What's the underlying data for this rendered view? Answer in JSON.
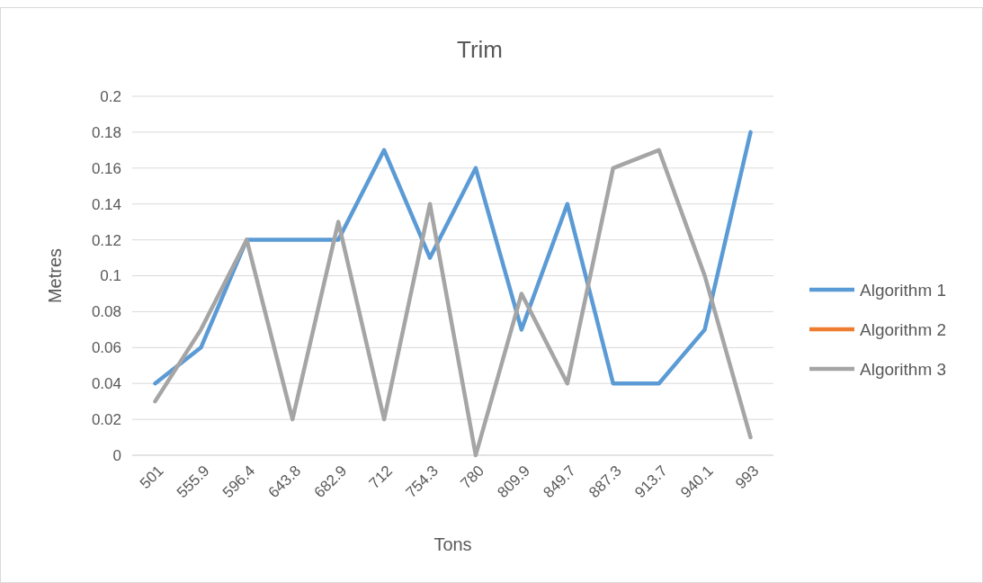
{
  "chart_data": {
    "type": "line",
    "title": "Trim",
    "xlabel": "Tons",
    "ylabel": "Metres",
    "categories": [
      "501",
      "555.9",
      "596.4",
      "643.8",
      "682.9",
      "712",
      "754.3",
      "780",
      "809.9",
      "849.7",
      "887.3",
      "913.7",
      "940.1",
      "993"
    ],
    "series": [
      {
        "name": "Algorithm 1",
        "color": "#5b9bd5",
        "values": [
          0.04,
          0.06,
          0.12,
          0.12,
          0.12,
          0.17,
          0.11,
          0.16,
          0.07,
          0.14,
          0.04,
          0.04,
          0.07,
          0.18
        ]
      },
      {
        "name": "Algorithm 2",
        "color": "#ed7d31",
        "values": [
          null,
          null,
          null,
          null,
          null,
          null,
          null,
          null,
          null,
          null,
          null,
          null,
          null,
          null
        ]
      },
      {
        "name": "Algorithm 3",
        "color": "#a5a5a5",
        "values": [
          0.03,
          0.07,
          0.12,
          0.02,
          0.13,
          0.02,
          0.14,
          0,
          0.09,
          0.04,
          0.16,
          0.17,
          0.1,
          0.01
        ]
      }
    ],
    "ylim": [
      0,
      0.2
    ],
    "yticks": [
      0,
      0.02,
      0.04,
      0.06,
      0.08,
      0.1,
      0.12,
      0.14,
      0.16,
      0.18,
      0.2
    ],
    "grid": "y",
    "legend": "right",
    "marker": "none",
    "line_style": "solid"
  }
}
